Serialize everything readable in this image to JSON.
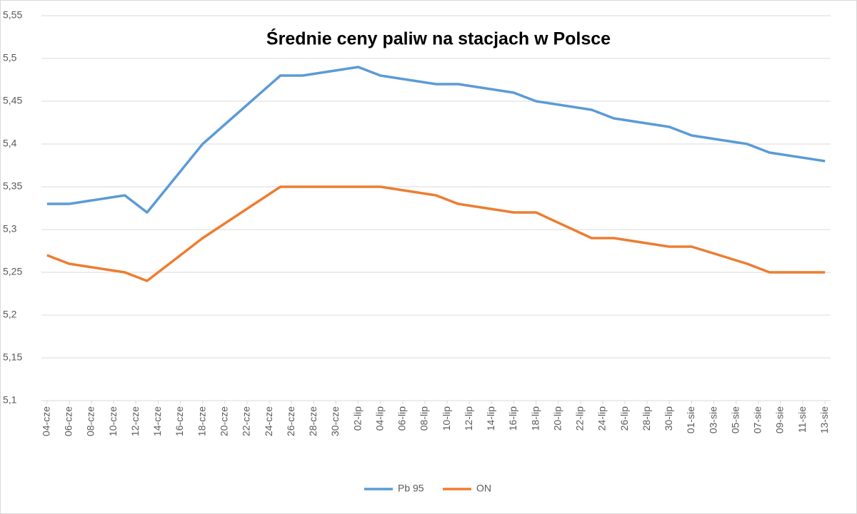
{
  "chart_data": {
    "type": "line",
    "title": "Średnie ceny paliw na stacjach w Polsce",
    "x": [
      "04-cze",
      "06-cze",
      "11-cze",
      "13-cze",
      "18-cze",
      "25-cze",
      "27-cze",
      "02-lip",
      "04-lip",
      "09-lip",
      "11-lip",
      "16-lip",
      "18-lip",
      "23-lip",
      "25-lip",
      "30-lip",
      "01-sie",
      "06-sie",
      "08-sie",
      "13-sie"
    ],
    "xticks": [
      "04-cze",
      "06-cze",
      "08-cze",
      "10-cze",
      "12-cze",
      "14-cze",
      "16-cze",
      "18-cze",
      "20-cze",
      "22-cze",
      "24-cze",
      "26-cze",
      "28-cze",
      "30-cze",
      "02-lip",
      "04-lip",
      "06-lip",
      "08-lip",
      "10-lip",
      "12-lip",
      "14-lip",
      "16-lip",
      "18-lip",
      "20-lip",
      "22-lip",
      "24-lip",
      "26-lip",
      "28-lip",
      "30-lip",
      "01-sie",
      "03-sie",
      "05-sie",
      "07-sie",
      "09-sie",
      "11-sie",
      "13-sie"
    ],
    "series": [
      {
        "name": "Pb 95",
        "color": "#5b9bd5",
        "values": [
          5.33,
          5.33,
          5.34,
          5.32,
          5.4,
          5.48,
          5.48,
          5.49,
          5.48,
          5.47,
          5.47,
          5.46,
          5.45,
          5.44,
          5.43,
          5.42,
          5.41,
          5.4,
          5.39,
          5.38
        ]
      },
      {
        "name": "ON",
        "color": "#ed7d31",
        "values": [
          5.27,
          5.26,
          5.25,
          5.24,
          5.29,
          5.35,
          5.35,
          5.35,
          5.35,
          5.34,
          5.33,
          5.32,
          5.32,
          5.29,
          5.29,
          5.28,
          5.28,
          5.26,
          5.25,
          5.25
        ]
      }
    ],
    "ylim": [
      5.1,
      5.55
    ],
    "yticks": [
      {
        "value": 5.1,
        "label": "5,1"
      },
      {
        "value": 5.15,
        "label": "5,15"
      },
      {
        "value": 5.2,
        "label": "5,2"
      },
      {
        "value": 5.25,
        "label": "5,25"
      },
      {
        "value": 5.3,
        "label": "5,3"
      },
      {
        "value": 5.35,
        "label": "5,35"
      },
      {
        "value": 5.4,
        "label": "5,4"
      },
      {
        "value": 5.45,
        "label": "5,45"
      },
      {
        "value": 5.5,
        "label": "5,5"
      },
      {
        "value": 5.55,
        "label": "5,55"
      }
    ],
    "grid": true,
    "legend": "bottom"
  }
}
